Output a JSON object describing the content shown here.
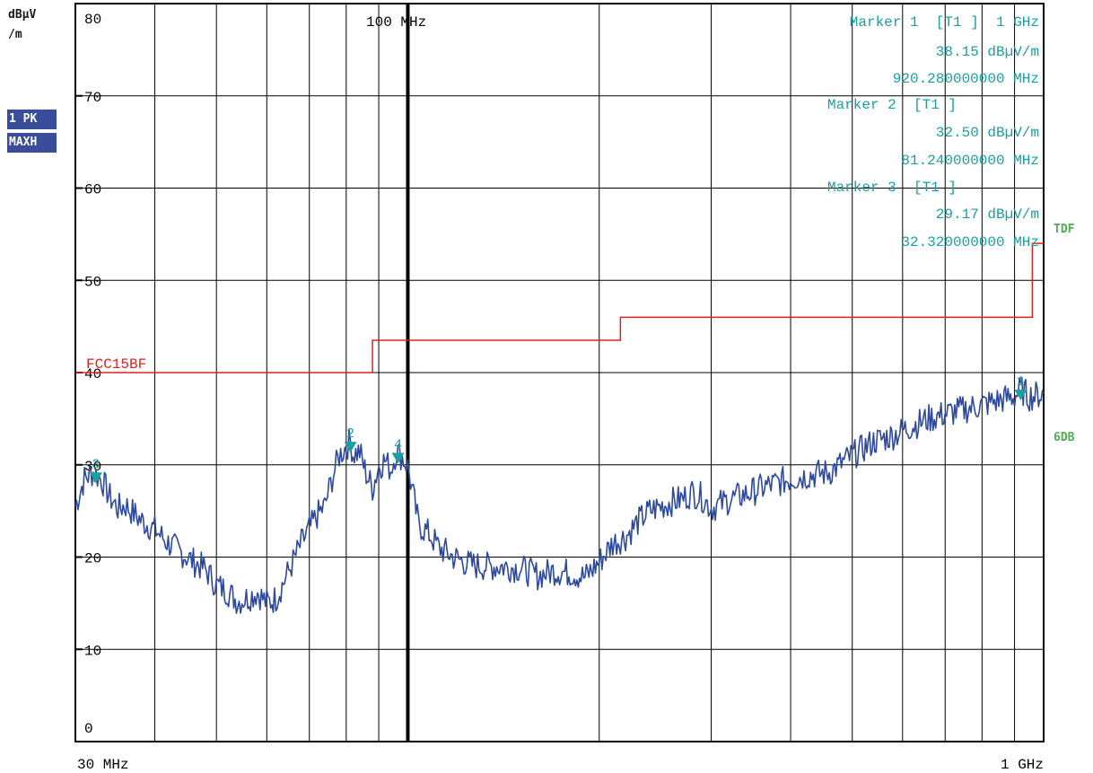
{
  "y_unit_top": "dBµV",
  "y_unit_bottom": "/m",
  "trace_badge_1": "1 PK",
  "trace_badge_2": "MAXH",
  "limit_line_name": "FCC15BF",
  "right_label_tdf": "TDF",
  "right_label_6db": "6DB",
  "x_start_label": "30 MHz",
  "x_stop_label": "1 GHz",
  "center_ref_label": "100 MHz",
  "markers": [
    {
      "title": "Marker 1  [T1 ]  1 GHz",
      "level": "38.15 dBµV/m",
      "freq": "920.280000000 MHz"
    },
    {
      "title": "Marker 2  [T1 ]",
      "level": "32.50 dBµV/m",
      "freq": "81.240000000 MHz"
    },
    {
      "title": "Marker 3  [T1 ]",
      "level": "29.17 dBµV/m",
      "freq": "32.320000000 MHz"
    }
  ],
  "colors": {
    "trace": "#2e4a9e",
    "limit": "#e02020",
    "marker": "#1aa0a0",
    "grid": "#000000",
    "badge": "#3a4d9a",
    "side_label": "#4caf50"
  },
  "chart_data": {
    "type": "line",
    "x_scale": "log",
    "x_unit": "MHz",
    "xlim": [
      30,
      1000
    ],
    "ylim": [
      0,
      80
    ],
    "ylabel": "dBµV/m",
    "y_ticks": [
      80,
      70,
      60,
      50,
      40,
      30,
      20,
      10,
      0
    ],
    "grid": true,
    "series": [
      {
        "x": [
          30,
          31,
          32,
          33,
          34,
          35,
          36,
          38,
          40,
          42,
          44,
          46,
          48,
          50,
          52,
          54,
          56,
          58,
          60,
          62,
          64,
          66,
          68,
          70,
          72,
          74,
          76,
          78,
          80,
          81.24,
          82,
          84,
          86,
          88,
          90,
          92,
          94,
          96,
          98,
          100,
          104,
          108,
          112,
          118,
          125,
          132,
          140,
          150,
          160,
          170,
          180,
          190,
          200,
          210,
          220,
          230,
          240,
          250,
          260,
          270,
          280,
          290,
          300,
          320,
          340,
          360,
          380,
          400,
          430,
          460,
          500,
          540,
          580,
          620,
          660,
          700,
          750,
          800,
          850,
          900,
          920.28,
          950,
          1000
        ],
        "y": [
          25.5,
          28.5,
          29.2,
          28.4,
          26.5,
          25.3,
          25.6,
          24.0,
          23.0,
          21.5,
          20.5,
          19.5,
          18.7,
          17.0,
          16.3,
          15.2,
          15.6,
          16.2,
          15.0,
          15.5,
          17.5,
          19.5,
          21.5,
          23.0,
          24.5,
          25.5,
          28.5,
          31.0,
          32.0,
          32.5,
          31.2,
          31.4,
          29.0,
          27.5,
          29.8,
          30.5,
          29.5,
          31.5,
          30.8,
          29.8,
          23.5,
          22.5,
          21.0,
          20.0,
          19.2,
          19.0,
          19.0,
          18.8,
          18.0,
          18.5,
          18.3,
          17.8,
          19.5,
          21.5,
          22.2,
          23.8,
          25.0,
          25.5,
          26.0,
          26.3,
          27.0,
          26.5,
          25.3,
          26.2,
          26.8,
          27.5,
          28.0,
          28.5,
          28.9,
          29.2,
          31.0,
          32.5,
          33.2,
          34.2,
          35.0,
          35.5,
          36.0,
          36.5,
          37.0,
          37.4,
          38.15,
          37.4,
          37.7
        ]
      }
    ],
    "limit_line": {
      "name": "FCC15BF",
      "x": [
        30,
        88,
        88,
        216,
        216,
        960,
        960,
        1000
      ],
      "y": [
        40,
        40,
        43.5,
        43.5,
        46,
        46,
        54,
        54
      ]
    },
    "markers": [
      {
        "label": "1",
        "x": 920.28,
        "y": 38.15
      },
      {
        "label": "2",
        "x": 81.24,
        "y": 32.5
      },
      {
        "label": "3",
        "x": 32.32,
        "y": 29.17
      },
      {
        "label": "4",
        "x": 96.5,
        "y": 31.3
      }
    ],
    "reference_line_x": 100
  }
}
